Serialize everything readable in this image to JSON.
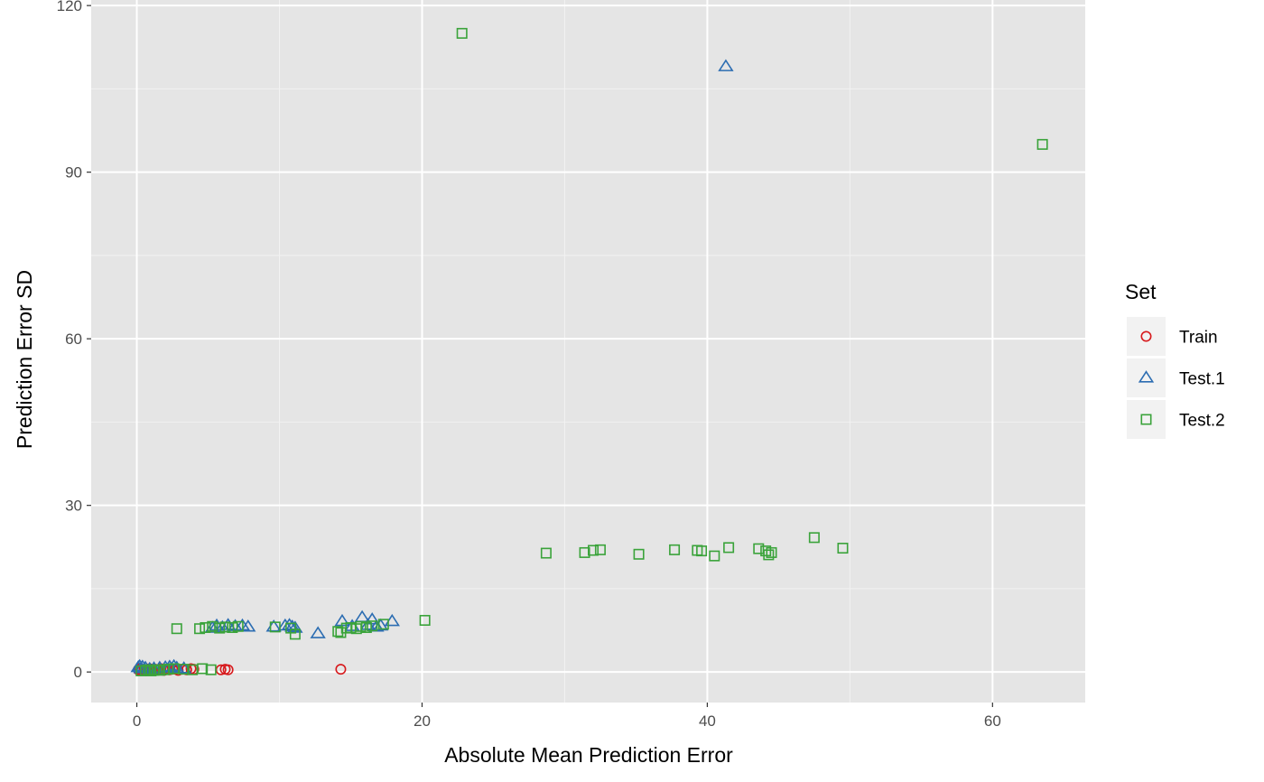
{
  "chart_data": {
    "type": "scatter",
    "title": "",
    "xlabel": "Absolute Mean Prediction Error",
    "ylabel": "Prediction Error SD",
    "xlim": [
      -3.2,
      66.5
    ],
    "ylim": [
      -5.5,
      121
    ],
    "x_ticks": [
      0,
      20,
      40,
      60
    ],
    "y_ticks": [
      0,
      30,
      60,
      90,
      120
    ],
    "x_tick_labels": [
      "0",
      "20",
      "40",
      "60"
    ],
    "y_tick_labels": [
      "0",
      "30",
      "60",
      "90",
      "120"
    ],
    "grid": true,
    "legend": {
      "title": "Set",
      "placement": "right"
    },
    "series": [
      {
        "name": "Train",
        "shape": "circle",
        "color": "#d7191c",
        "points": [
          [
            0.1,
            0.4
          ],
          [
            0.2,
            0.6
          ],
          [
            0.3,
            0.3
          ],
          [
            0.5,
            0.5
          ],
          [
            0.7,
            0.4
          ],
          [
            0.9,
            0.6
          ],
          [
            1.1,
            0.3
          ],
          [
            1.3,
            0.5
          ],
          [
            1.5,
            0.4
          ],
          [
            1.7,
            0.6
          ],
          [
            1.9,
            0.3
          ],
          [
            2.1,
            0.5
          ],
          [
            2.3,
            0.4
          ],
          [
            2.5,
            0.6
          ],
          [
            2.7,
            0.5
          ],
          [
            2.9,
            0.3
          ],
          [
            3.2,
            0.5
          ],
          [
            3.5,
            0.4
          ],
          [
            3.8,
            0.6
          ],
          [
            4.0,
            0.5
          ],
          [
            5.9,
            0.4
          ],
          [
            6.2,
            0.5
          ],
          [
            6.4,
            0.4
          ],
          [
            14.3,
            0.5
          ]
        ]
      },
      {
        "name": "Test.1",
        "shape": "triangle",
        "color": "#2c6db2",
        "points": [
          [
            0.1,
            0.8
          ],
          [
            0.2,
            1.0
          ],
          [
            0.3,
            0.6
          ],
          [
            0.4,
            0.9
          ],
          [
            0.6,
            0.7
          ],
          [
            0.9,
            0.5
          ],
          [
            1.2,
            0.6
          ],
          [
            1.6,
            0.7
          ],
          [
            2.0,
            0.8
          ],
          [
            2.3,
            0.9
          ],
          [
            2.6,
            1.0
          ],
          [
            2.8,
            0.7
          ],
          [
            3.3,
            0.6
          ],
          [
            5.3,
            7.9
          ],
          [
            5.6,
            8.3
          ],
          [
            6.0,
            8.0
          ],
          [
            6.4,
            8.4
          ],
          [
            6.9,
            8.2
          ],
          [
            7.4,
            8.3
          ],
          [
            7.8,
            8.1
          ],
          [
            9.6,
            8.1
          ],
          [
            10.4,
            8.3
          ],
          [
            10.7,
            8.4
          ],
          [
            10.9,
            8.1
          ],
          [
            11.1,
            7.9
          ],
          [
            12.7,
            6.9
          ],
          [
            14.4,
            9.1
          ],
          [
            15.1,
            8.2
          ],
          [
            15.8,
            9.8
          ],
          [
            16.2,
            8.4
          ],
          [
            16.5,
            9.4
          ],
          [
            16.8,
            8.1
          ],
          [
            17.1,
            8.3
          ],
          [
            17.9,
            9.1
          ],
          [
            41.3,
            109.0
          ]
        ]
      },
      {
        "name": "Test.2",
        "shape": "square",
        "color": "#3aa33a",
        "points": [
          [
            0.3,
            0.2
          ],
          [
            0.6,
            0.3
          ],
          [
            0.8,
            0.4
          ],
          [
            1.0,
            0.2
          ],
          [
            1.2,
            0.3
          ],
          [
            1.4,
            0.4
          ],
          [
            1.6,
            0.3
          ],
          [
            1.9,
            0.4
          ],
          [
            2.2,
            0.5
          ],
          [
            2.6,
            0.6
          ],
          [
            3.3,
            0.5
          ],
          [
            3.9,
            0.4
          ],
          [
            4.6,
            0.6
          ],
          [
            5.2,
            0.4
          ],
          [
            2.8,
            7.8
          ],
          [
            4.4,
            7.8
          ],
          [
            4.8,
            8.0
          ],
          [
            5.3,
            8.2
          ],
          [
            5.8,
            7.9
          ],
          [
            6.2,
            8.1
          ],
          [
            6.7,
            8.0
          ],
          [
            7.1,
            8.2
          ],
          [
            9.7,
            8.1
          ],
          [
            10.8,
            7.9
          ],
          [
            11.1,
            6.8
          ],
          [
            14.1,
            7.3
          ],
          [
            14.3,
            7.1
          ],
          [
            14.7,
            7.9
          ],
          [
            15.0,
            8.0
          ],
          [
            15.4,
            7.8
          ],
          [
            15.7,
            8.2
          ],
          [
            16.1,
            8.0
          ],
          [
            16.5,
            8.3
          ],
          [
            17.3,
            8.6
          ],
          [
            20.2,
            9.3
          ],
          [
            22.8,
            115.0
          ],
          [
            28.7,
            21.4
          ],
          [
            31.4,
            21.5
          ],
          [
            32.0,
            21.9
          ],
          [
            32.5,
            22.0
          ],
          [
            35.2,
            21.2
          ],
          [
            37.7,
            22.0
          ],
          [
            39.3,
            21.9
          ],
          [
            39.6,
            21.8
          ],
          [
            40.5,
            20.9
          ],
          [
            41.5,
            22.4
          ],
          [
            43.6,
            22.2
          ],
          [
            44.1,
            21.8
          ],
          [
            44.3,
            21.1
          ],
          [
            44.5,
            21.5
          ],
          [
            47.5,
            24.2
          ],
          [
            49.5,
            22.3
          ],
          [
            63.5,
            95.0
          ]
        ]
      }
    ]
  }
}
